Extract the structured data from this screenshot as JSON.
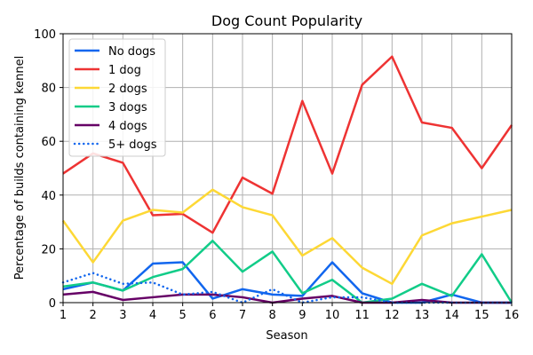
{
  "chart_data": {
    "type": "line",
    "title": "Dog Count Popularity",
    "xlabel": "Season",
    "ylabel": "Percentage of builds containing kennel",
    "x": [
      1,
      2,
      3,
      4,
      5,
      6,
      7,
      8,
      9,
      10,
      11,
      12,
      13,
      14,
      15,
      16
    ],
    "xlim": [
      1,
      16
    ],
    "ylim": [
      0,
      100
    ],
    "xticks": [
      1,
      2,
      3,
      4,
      5,
      6,
      7,
      8,
      9,
      10,
      11,
      12,
      13,
      14,
      15,
      16
    ],
    "yticks": [
      0,
      20,
      40,
      60,
      80,
      100
    ],
    "grid": true,
    "legend_position": "top-left",
    "series": [
      {
        "name": "No dogs",
        "color": "#1166ee",
        "style": "solid",
        "values": [
          5,
          7.5,
          4.5,
          14.5,
          15,
          1.5,
          5,
          3,
          2.5,
          15,
          3.5,
          0,
          0,
          3,
          0,
          0
        ]
      },
      {
        "name": "1 dog",
        "color": "#ee3333",
        "style": "solid",
        "values": [
          48,
          55.5,
          52,
          32.5,
          33,
          26,
          46.5,
          40.5,
          75,
          48,
          81,
          91.5,
          67,
          65,
          50,
          66
        ]
      },
      {
        "name": "2 dogs",
        "color": "#fdd835",
        "style": "solid",
        "values": [
          30.5,
          15,
          30.5,
          34.5,
          33.5,
          42,
          35.5,
          32.5,
          17.5,
          24,
          13,
          7,
          25,
          29.5,
          32,
          34.5
        ]
      },
      {
        "name": "3 dogs",
        "color": "#11cc88",
        "style": "solid",
        "values": [
          6,
          7.5,
          4.5,
          9.5,
          12.5,
          23,
          11.5,
          19,
          3.5,
          8.5,
          0,
          1.5,
          7,
          2.5,
          18,
          0
        ]
      },
      {
        "name": "4 dogs",
        "color": "#660066",
        "style": "solid",
        "values": [
          3,
          4,
          1,
          2,
          3,
          3,
          2,
          0,
          1.5,
          2.5,
          0,
          0,
          1,
          0,
          0,
          0
        ]
      },
      {
        "name": "5+ dogs",
        "color": "#1166ee",
        "style": "dotted",
        "values": [
          7.5,
          11,
          7,
          7.5,
          3,
          4,
          0,
          5,
          0,
          2,
          2,
          0,
          0,
          0,
          0,
          0
        ]
      }
    ]
  }
}
